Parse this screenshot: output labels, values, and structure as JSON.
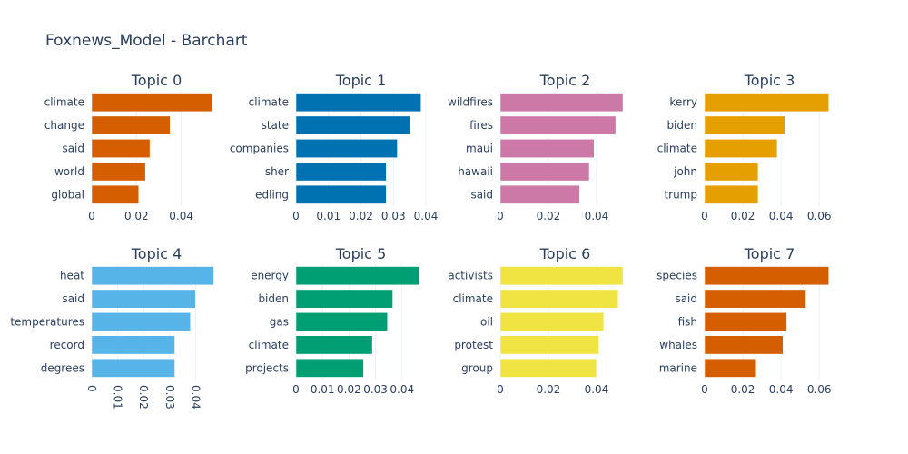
{
  "figure": {
    "title": "Foxnews_Model - Barchart"
  },
  "chart_data": [
    {
      "type": "bar",
      "orientation": "horizontal",
      "title": "Topic 0",
      "color": "#D55E00",
      "categories": [
        "climate",
        "change",
        "said",
        "world",
        "global"
      ],
      "values": [
        0.054,
        0.035,
        0.026,
        0.024,
        0.021
      ],
      "xlim": [
        0,
        0.058
      ],
      "xticks": [
        0,
        0.02,
        0.04
      ],
      "xtick_labels": [
        "0",
        "0.02",
        "0.04"
      ],
      "grid": true
    },
    {
      "type": "bar",
      "orientation": "horizontal",
      "title": "Topic 1",
      "color": "#0072B2",
      "categories": [
        "climate",
        "state",
        "companies",
        "sher",
        "edling"
      ],
      "values": [
        0.0385,
        0.0352,
        0.0312,
        0.0278,
        0.0278
      ],
      "xlim": [
        0,
        0.04
      ],
      "xticks": [
        0,
        0.01,
        0.02,
        0.03,
        0.04
      ],
      "xtick_labels": [
        "0",
        "0.01",
        "0.02",
        "0.03",
        "0.04"
      ],
      "grid": true
    },
    {
      "type": "bar",
      "orientation": "horizontal",
      "title": "Topic 2",
      "color": "#CC79A7",
      "categories": [
        "wildfires",
        "fires",
        "maui",
        "hawaii",
        "said"
      ],
      "values": [
        0.051,
        0.048,
        0.039,
        0.037,
        0.033
      ],
      "xlim": [
        0,
        0.054
      ],
      "xticks": [
        0,
        0.02,
        0.04
      ],
      "xtick_labels": [
        "0",
        "0.02",
        "0.04"
      ],
      "grid": true
    },
    {
      "type": "bar",
      "orientation": "horizontal",
      "title": "Topic 3",
      "color": "#E69F00",
      "categories": [
        "kerry",
        "biden",
        "climate",
        "john",
        "trump"
      ],
      "values": [
        0.065,
        0.042,
        0.038,
        0.028,
        0.028
      ],
      "xlim": [
        0,
        0.068
      ],
      "xticks": [
        0,
        0.02,
        0.04,
        0.06
      ],
      "xtick_labels": [
        "0",
        "0.02",
        "0.04",
        "0.06"
      ],
      "grid": true
    },
    {
      "type": "bar",
      "orientation": "horizontal",
      "title": "Topic 4",
      "color": "#56B4E9",
      "categories": [
        "heat",
        "said",
        "temperatures",
        "record",
        "degrees"
      ],
      "values": [
        0.047,
        0.04,
        0.038,
        0.032,
        0.032
      ],
      "xlim": [
        0,
        0.05
      ],
      "xticks": [
        0,
        0.01,
        0.02,
        0.03,
        0.04
      ],
      "xtick_labels": [
        "0",
        "0.01",
        "0.02",
        "0.03",
        "0.04"
      ],
      "xtick_rotation": 90,
      "grid": true
    },
    {
      "type": "bar",
      "orientation": "horizontal",
      "title": "Topic 5",
      "color": "#009E73",
      "categories": [
        "energy",
        "biden",
        "gas",
        "climate",
        "projects"
      ],
      "values": [
        0.0465,
        0.0365,
        0.0345,
        0.0288,
        0.0255
      ],
      "xlim": [
        0,
        0.049
      ],
      "xticks": [
        0,
        0.01,
        0.02,
        0.03,
        0.04
      ],
      "xtick_labels": [
        "0",
        "0.01",
        "0.02",
        "0.03",
        "0.04"
      ],
      "grid": true
    },
    {
      "type": "bar",
      "orientation": "horizontal",
      "title": "Topic 6",
      "color": "#F0E442",
      "categories": [
        "activists",
        "climate",
        "oil",
        "protest",
        "group"
      ],
      "values": [
        0.051,
        0.049,
        0.043,
        0.041,
        0.04
      ],
      "xlim": [
        0,
        0.054
      ],
      "xticks": [
        0,
        0.02,
        0.04
      ],
      "xtick_labels": [
        "0",
        "0.02",
        "0.04"
      ],
      "grid": true
    },
    {
      "type": "bar",
      "orientation": "horizontal",
      "title": "Topic 7",
      "color": "#D55E00",
      "categories": [
        "species",
        "said",
        "fish",
        "whales",
        "marine"
      ],
      "values": [
        0.065,
        0.053,
        0.043,
        0.041,
        0.027
      ],
      "xlim": [
        0,
        0.068
      ],
      "xticks": [
        0,
        0.02,
        0.04,
        0.06
      ],
      "xtick_labels": [
        "0",
        "0.02",
        "0.04",
        "0.06"
      ],
      "grid": true
    }
  ]
}
